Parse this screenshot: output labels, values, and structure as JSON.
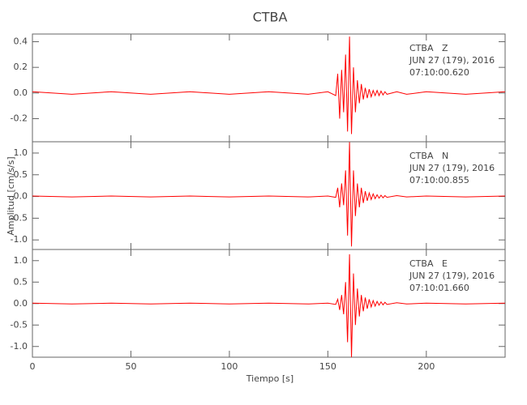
{
  "chart_data": [
    {
      "type": "line",
      "title": "CTBA",
      "color": "#ff0000",
      "annotations": [
        "CTBA   Z",
        "JUN 27 (179), 2016",
        "07:10:00.620"
      ],
      "xlim": [
        0,
        240
      ],
      "ylim": [
        -0.38,
        0.46
      ],
      "yticks": [
        -0.2,
        {
          "value": 0,
          "label": "0.0"
        },
        0.2,
        0.4
      ],
      "x": [
        0,
        20,
        40,
        60,
        80,
        100,
        120,
        140,
        150,
        154,
        155,
        156,
        157,
        158,
        159,
        160,
        161,
        162,
        163,
        164,
        165,
        166,
        167,
        168,
        169,
        170,
        171,
        172,
        173,
        174,
        175,
        176,
        177,
        178,
        179,
        180,
        185,
        190,
        200,
        220,
        240
      ],
      "values": [
        0.01,
        -0.01,
        0.01,
        -0.01,
        0.01,
        -0.01,
        0.01,
        -0.01,
        0.01,
        -0.02,
        0.15,
        -0.2,
        0.18,
        -0.15,
        0.3,
        -0.3,
        0.44,
        -0.32,
        0.2,
        -0.15,
        0.1,
        -0.08,
        0.07,
        -0.05,
        0.04,
        -0.04,
        0.03,
        -0.03,
        0.02,
        -0.02,
        0.02,
        -0.02,
        0.015,
        -0.015,
        0.01,
        -0.01,
        0.01,
        -0.01,
        0.01,
        -0.01,
        0.01
      ]
    },
    {
      "type": "line",
      "y_label": "Amplitud [cm/s/s]",
      "color": "#ff0000",
      "annotations": [
        "CTBA   N",
        "JUN 27 (179), 2016",
        "07:10:00.855"
      ],
      "xlim": [
        0,
        240
      ],
      "ylim": [
        -1.22,
        1.26
      ],
      "yticks": [
        {
          "value": -1,
          "label": "-1.0"
        },
        -0.5,
        {
          "value": 0,
          "label": "0.0"
        },
        0.5,
        {
          "value": 1,
          "label": "1.0"
        }
      ],
      "x": [
        0,
        20,
        40,
        60,
        80,
        100,
        120,
        140,
        150,
        154,
        155,
        156,
        157,
        158,
        159,
        160,
        161,
        162,
        163,
        164,
        165,
        166,
        167,
        168,
        169,
        170,
        171,
        172,
        173,
        174,
        175,
        176,
        177,
        178,
        179,
        180,
        185,
        190,
        200,
        220,
        240
      ],
      "values": [
        0.01,
        -0.01,
        0.01,
        -0.01,
        0.01,
        -0.01,
        0.01,
        -0.01,
        0.01,
        -0.02,
        0.2,
        -0.25,
        0.3,
        -0.2,
        0.6,
        -0.9,
        1.25,
        -1.15,
        0.6,
        -0.45,
        0.3,
        -0.25,
        0.2,
        -0.15,
        0.12,
        -0.1,
        0.08,
        -0.07,
        0.06,
        -0.05,
        0.04,
        -0.04,
        0.03,
        -0.03,
        0.02,
        -0.02,
        0.02,
        -0.01,
        0.01,
        -0.01,
        0.01
      ]
    },
    {
      "type": "line",
      "x_label": "Tiempo [s]",
      "color": "#ff0000",
      "annotations": [
        "CTBA   E",
        "JUN 27 (179), 2016",
        "07:10:01.660"
      ],
      "xlim": [
        0,
        240
      ],
      "xticks": [
        0,
        50,
        100,
        150,
        200
      ],
      "ylim": [
        -1.25,
        1.26
      ],
      "yticks": [
        {
          "value": -1,
          "label": "-1.0"
        },
        -0.5,
        {
          "value": 0,
          "label": "0.0"
        },
        0.5,
        {
          "value": 1,
          "label": "1.0"
        }
      ],
      "x": [
        0,
        20,
        40,
        60,
        80,
        100,
        120,
        140,
        150,
        154,
        155,
        156,
        157,
        158,
        159,
        160,
        161,
        162,
        163,
        164,
        165,
        166,
        167,
        168,
        169,
        170,
        171,
        172,
        173,
        174,
        175,
        176,
        177,
        178,
        179,
        180,
        185,
        190,
        200,
        220,
        240
      ],
      "values": [
        0.01,
        -0.01,
        0.01,
        -0.01,
        0.01,
        -0.01,
        0.01,
        -0.01,
        0.01,
        -0.02,
        0.1,
        -0.15,
        0.2,
        -0.25,
        0.5,
        -0.9,
        1.15,
        -1.25,
        0.7,
        -0.5,
        0.35,
        -0.3,
        0.2,
        -0.18,
        0.14,
        -0.12,
        0.1,
        -0.08,
        0.07,
        -0.06,
        0.05,
        -0.04,
        0.04,
        -0.03,
        0.03,
        -0.02,
        0.02,
        -0.01,
        0.01,
        -0.01,
        0.01
      ]
    }
  ]
}
